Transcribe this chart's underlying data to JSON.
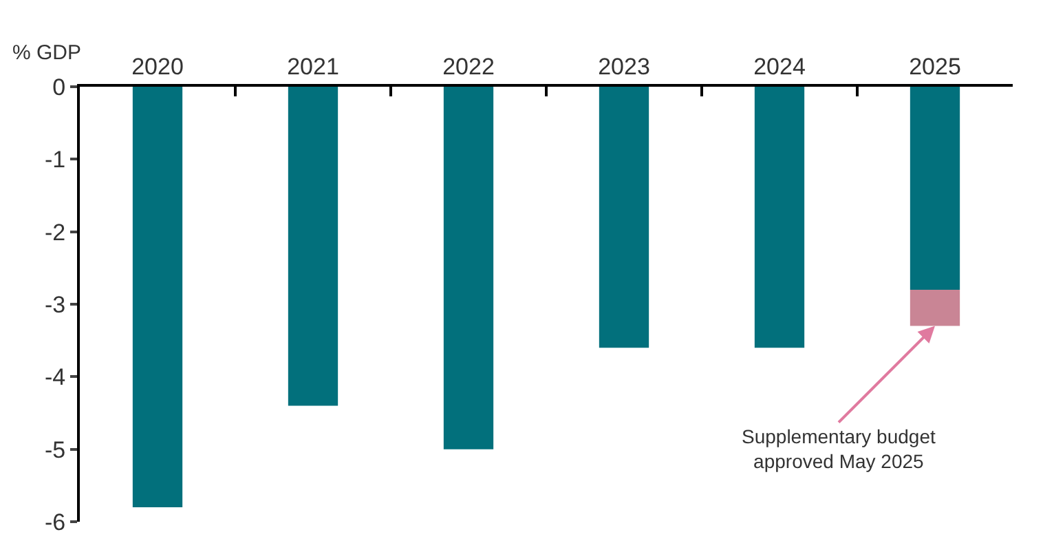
{
  "chart_data": {
    "type": "bar",
    "ylabel": "% GDP",
    "categories": [
      "2020",
      "2021",
      "2022",
      "2023",
      "2024",
      "2025"
    ],
    "series": [
      {
        "color": "#02707c",
        "values": [
          -5.8,
          -4.4,
          -5.0,
          -3.6,
          -3.6,
          -2.8
        ]
      },
      {
        "color": "#c98595",
        "values": [
          null,
          null,
          null,
          null,
          null,
          -0.5
        ]
      }
    ],
    "stacked": true,
    "ylim": [
      -6,
      0
    ],
    "yticks": [
      0,
      -1,
      -2,
      -3,
      -4,
      -5,
      -6
    ],
    "annotations": [
      {
        "text": "Supplementary budget\napproved May 2025",
        "x": "2025",
        "y": -3.3
      }
    ]
  }
}
